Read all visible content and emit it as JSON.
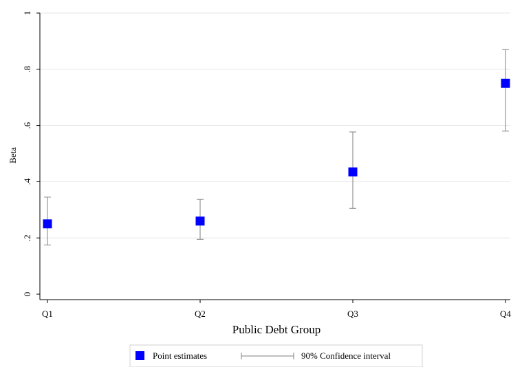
{
  "chart_data": {
    "type": "scatter",
    "categories": [
      "Q1",
      "Q2",
      "Q3",
      "Q4"
    ],
    "series": [
      {
        "name": "Point estimates",
        "values": [
          0.25,
          0.26,
          0.435,
          0.75
        ],
        "ci_low": [
          0.175,
          0.195,
          0.305,
          0.58
        ],
        "ci_high": [
          0.345,
          0.337,
          0.577,
          0.87
        ]
      }
    ],
    "ci_name": "90% Confidence interval",
    "xlabel": "Public Debt Group",
    "ylabel": "Beta",
    "ylim": [
      0,
      1
    ],
    "yticks": [
      0,
      0.2,
      0.4,
      0.6,
      0.8,
      1
    ],
    "ytick_labels": [
      "0",
      ".2",
      ".4",
      ".6",
      ".8",
      "1"
    ],
    "grid": true,
    "legend_position": "bottom",
    "colors": {
      "point": "#0000ff",
      "ci": "#7f7f7f",
      "grid": "#e6e6e6",
      "axis": "#000000"
    }
  }
}
